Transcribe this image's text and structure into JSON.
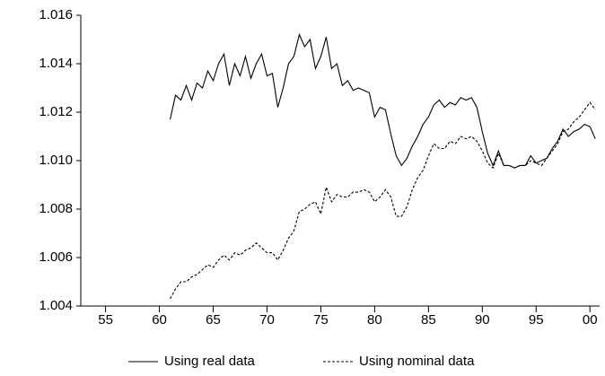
{
  "chart_data": {
    "type": "line",
    "x": [
      61,
      61.5,
      62,
      62.5,
      63,
      63.5,
      64,
      64.5,
      65,
      65.5,
      66,
      66.5,
      67,
      67.5,
      68,
      68.5,
      69,
      69.5,
      70,
      70.5,
      71,
      71.5,
      72,
      72.5,
      73,
      73.5,
      74,
      74.5,
      75,
      75.5,
      76,
      76.5,
      77,
      77.5,
      78,
      78.5,
      79,
      79.5,
      80,
      80.5,
      81,
      81.5,
      82,
      82.5,
      83,
      83.5,
      84,
      84.5,
      85,
      85.5,
      86,
      86.5,
      87,
      87.5,
      88,
      88.5,
      89,
      89.5,
      90,
      90.5,
      91,
      91.5,
      92,
      92.5,
      93,
      93.5,
      94,
      94.5,
      95,
      95.5,
      96,
      96.5,
      97,
      97.5,
      98,
      98.5,
      99,
      99.5,
      100,
      100.5
    ],
    "series": [
      {
        "name": "Using real data",
        "color": "#000000",
        "linestyle": "solid",
        "values": [
          1.0117,
          1.0127,
          1.0125,
          1.0131,
          1.0125,
          1.0132,
          1.013,
          1.0137,
          1.0133,
          1.014,
          1.0144,
          1.0131,
          1.014,
          1.0135,
          1.0143,
          1.0134,
          1.014,
          1.0144,
          1.0135,
          1.0136,
          1.0122,
          1.013,
          1.014,
          1.0143,
          1.0152,
          1.0147,
          1.015,
          1.0138,
          1.0143,
          1.0151,
          1.0138,
          1.014,
          1.0131,
          1.0133,
          1.0129,
          1.013,
          1.0129,
          1.0128,
          1.0118,
          1.0122,
          1.0121,
          1.0111,
          1.0102,
          1.0098,
          1.0101,
          1.0106,
          1.011,
          1.0115,
          1.0118,
          1.0123,
          1.0125,
          1.0122,
          1.0124,
          1.0123,
          1.0126,
          1.0125,
          1.0126,
          1.0122,
          1.0112,
          1.0103,
          1.0098,
          1.0104,
          1.0098,
          1.0098,
          1.0097,
          1.0098,
          1.0098,
          1.0102,
          1.0099,
          1.01,
          1.0101,
          1.0105,
          1.0108,
          1.0113,
          1.011,
          1.0112,
          1.0113,
          1.0115,
          1.0114,
          1.0109
        ]
      },
      {
        "name": "Using nominal data",
        "color": "#000000",
        "linestyle": "dashed",
        "values": [
          1.0043,
          1.0047,
          1.005,
          1.005,
          1.0052,
          1.0053,
          1.0055,
          1.0057,
          1.0056,
          1.0059,
          1.0061,
          1.0059,
          1.0062,
          1.0061,
          1.0063,
          1.0064,
          1.0066,
          1.0064,
          1.0062,
          1.0062,
          1.0059,
          1.0063,
          1.0068,
          1.0071,
          1.0079,
          1.008,
          1.0082,
          1.0083,
          1.0078,
          1.0089,
          1.0083,
          1.0086,
          1.0085,
          1.0085,
          1.0087,
          1.0087,
          1.0088,
          1.0087,
          1.0083,
          1.0085,
          1.0088,
          1.0085,
          1.0077,
          1.0077,
          1.0081,
          1.0088,
          1.0093,
          1.0096,
          1.0102,
          1.0107,
          1.0105,
          1.0105,
          1.0108,
          1.0107,
          1.011,
          1.0109,
          1.011,
          1.0108,
          1.0104,
          1.0099,
          1.0097,
          1.0103,
          1.0098,
          1.0098,
          1.0097,
          1.0098,
          1.0098,
          1.01,
          1.0099,
          1.0098,
          1.0101,
          1.0104,
          1.0107,
          1.0112,
          1.0113,
          1.0116,
          1.0118,
          1.0121,
          1.0124,
          1.0121
        ]
      }
    ],
    "xlim": [
      52.7,
      100.9
    ],
    "xticks": [
      55,
      60,
      65,
      70,
      75,
      80,
      85,
      90,
      95,
      {
        "value": 100,
        "label": "00"
      }
    ],
    "ylim": [
      1.004,
      1.016
    ],
    "yticks": [
      1.004,
      1.006,
      1.008,
      {
        "value": 1.01,
        "label": "1.010"
      },
      1.012,
      1.014,
      1.016
    ],
    "legend": "bottom"
  }
}
